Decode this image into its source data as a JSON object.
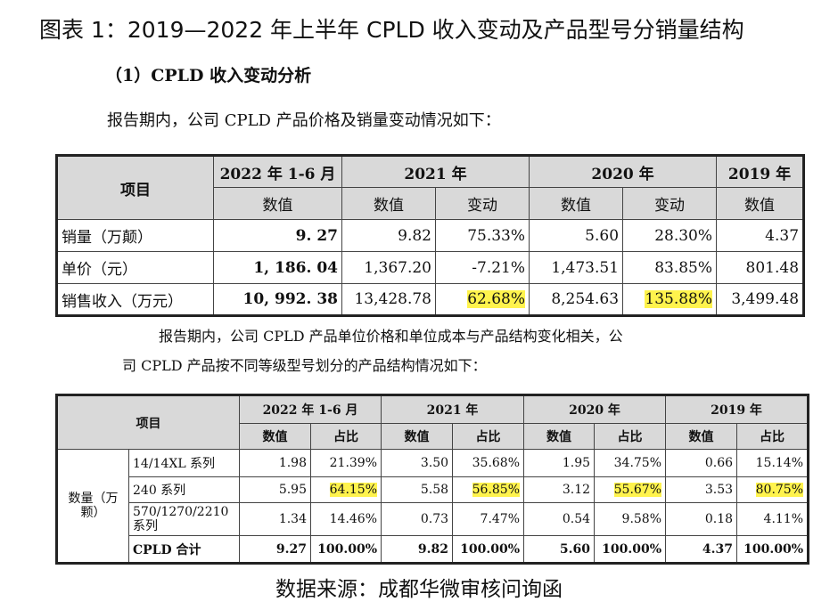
{
  "title": "图表 1：2019—2022 年上半年 CPLD 收入变动及产品型号分销量结构",
  "subheading": "（1）CPLD 收入变动分析",
  "para1": "报告期内，公司 CPLD 产品价格及销量变动情况如下：",
  "table1": {
    "item_header": "项目",
    "periods": [
      "2022 年 1-6 月",
      "2021 年",
      "2020 年",
      "2019 年"
    ],
    "sub_headers": [
      "数值",
      "数值",
      "变动",
      "数值",
      "变动",
      "数值"
    ],
    "rows": [
      {
        "label": "销量（万颠）",
        "cells": [
          "9. 27",
          "9.82",
          "75.33%",
          "5.60",
          "28.30%",
          "4.37"
        ]
      },
      {
        "label": "单价（元）",
        "cells": [
          "1, 186. 04",
          "1,367.20",
          "-7.21%",
          "1,473.51",
          "83.85%",
          "801.48"
        ]
      },
      {
        "label": "销售收入（万元）",
        "cells": [
          "10, 992. 38",
          "13,428.78",
          "62.68%",
          "8,254.63",
          "135.88%",
          "3,499.48"
        ]
      }
    ]
  },
  "para2_line1": "报告期内，公司  CPLD  产品单位价格和单位成本与产品结构变化相关，公",
  "para2_line2": "司 CPLD 产品按不同等级型号划分的产品结构情况如下：",
  "table2": {
    "item_header": "项目",
    "periods": [
      "2022 年 1-6 月",
      "2021 年",
      "2020 年",
      "2019 年"
    ],
    "sub_headers": [
      "数值",
      "占比",
      "数值",
      "占比",
      "数值",
      "占比",
      "数值",
      "占比"
    ],
    "group_label": "数量（万颗）",
    "rows": [
      {
        "label": "14/14XL 系列",
        "cells": [
          "1.98",
          "21.39%",
          "3.50",
          "35.68%",
          "1.95",
          "34.75%",
          "0.66",
          "15.14%"
        ]
      },
      {
        "label": "240 系列",
        "cells": [
          "5.95",
          "64.15%",
          "5.58",
          "56.85%",
          "3.12",
          "55.67%",
          "3.53",
          "80.75%"
        ]
      },
      {
        "label": "570/1270/2210 系列",
        "cells": [
          "1.34",
          "14.46%",
          "0.73",
          "7.47%",
          "0.54",
          "9.58%",
          "0.18",
          "4.11%"
        ]
      },
      {
        "label": "CPLD 合计",
        "cells": [
          "9.27",
          "100.00%",
          "9.82",
          "100.00%",
          "5.60",
          "100.00%",
          "4.37",
          "100.00%"
        ]
      }
    ]
  },
  "source": "数据来源：成都华微审核问询函",
  "colors": {
    "header_bg": "#d9d9d9",
    "highlight": "#fff34d"
  }
}
